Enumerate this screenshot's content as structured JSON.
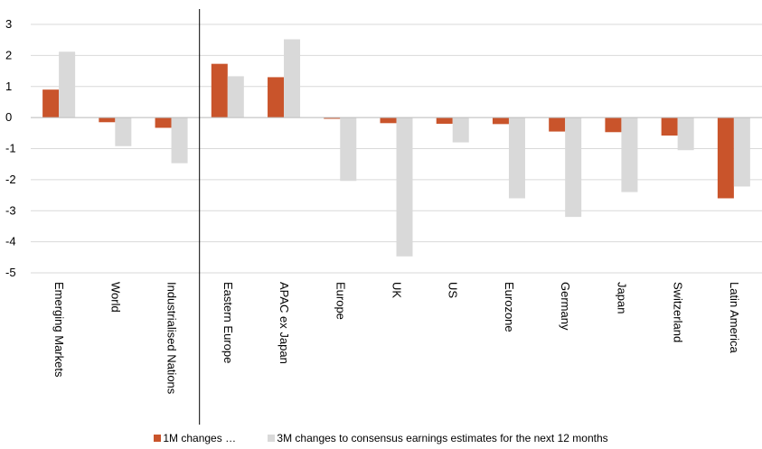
{
  "chart_data": {
    "type": "bar",
    "categories": [
      "Emerging Markets",
      "World",
      "Industrialised Nations",
      "Eastern Europe",
      "APAC ex Japan",
      "Europe",
      "UK",
      "US",
      "Eurozone",
      "Germany",
      "Japan",
      "Switzerland",
      "Latin America"
    ],
    "series": [
      {
        "name": "1M changes …",
        "color": "#c9542b",
        "values": [
          0.9,
          -0.15,
          -0.33,
          1.73,
          1.3,
          -0.04,
          -0.18,
          -0.2,
          -0.21,
          -0.45,
          -0.47,
          -0.58,
          -2.6
        ]
      },
      {
        "name": "3M changes to consensus earnings estimates for the next 12 months",
        "color": "#d9d9d9",
        "values": [
          2.12,
          -0.92,
          -1.47,
          1.33,
          2.52,
          -2.04,
          -4.47,
          -0.8,
          -2.6,
          -3.2,
          -2.4,
          -1.05,
          -2.22
        ]
      }
    ],
    "ylim": [
      -5,
      3
    ],
    "yticks": [
      "3",
      "2",
      "1",
      "0",
      "-1",
      "-2",
      "-3",
      "-4",
      "-5"
    ],
    "grid": true,
    "legend": "bottom",
    "divider_after_index": 2
  }
}
